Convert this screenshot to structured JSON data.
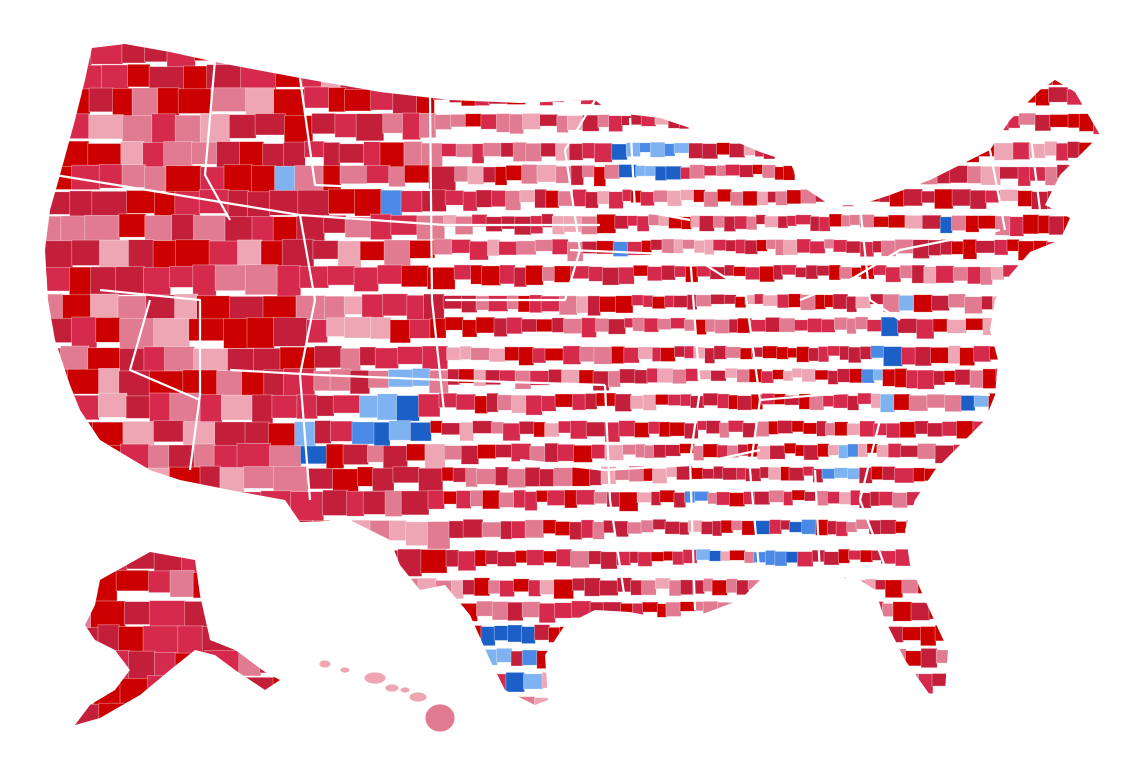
{
  "map": {
    "colors": {
      "strong_red": "#cc0000",
      "red": "#d62a4c",
      "medium_red": "#c41f3a",
      "light_red": "#e07b91",
      "pale_red": "#eea6b4",
      "light_blue": "#7fb2f0",
      "medium_blue": "#4a89e6",
      "strong_blue": "#1b5fc7",
      "border": "#ffffff",
      "background": "#ffffff"
    },
    "regions": [
      {
        "name": "contiguous-us"
      },
      {
        "name": "alaska"
      },
      {
        "name": "hawaii"
      }
    ]
  }
}
